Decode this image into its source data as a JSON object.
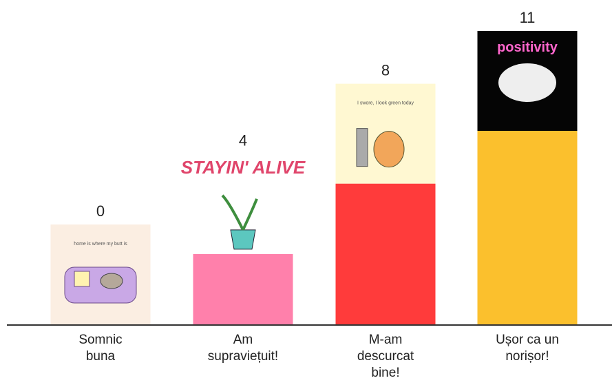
{
  "chart_data": {
    "type": "bar",
    "categories": [
      "Somnic\nbuna",
      "Am\nsupraviețuit!",
      "M-am\ndescurcat\nbine!",
      "Ușor ca un\nnorișor!"
    ],
    "values": [
      0,
      4,
      8,
      11
    ],
    "colors": [
      "#b9a6e0",
      "#ff80ab",
      "#ff3b3b",
      "#fbc02d"
    ]
  },
  "images": [
    {
      "text": "home is where my butt is"
    },
    {
      "text": "STAYIN' ALIVE"
    },
    {
      "text": "I swore, I look green today"
    },
    {
      "text": "positivity"
    }
  ]
}
